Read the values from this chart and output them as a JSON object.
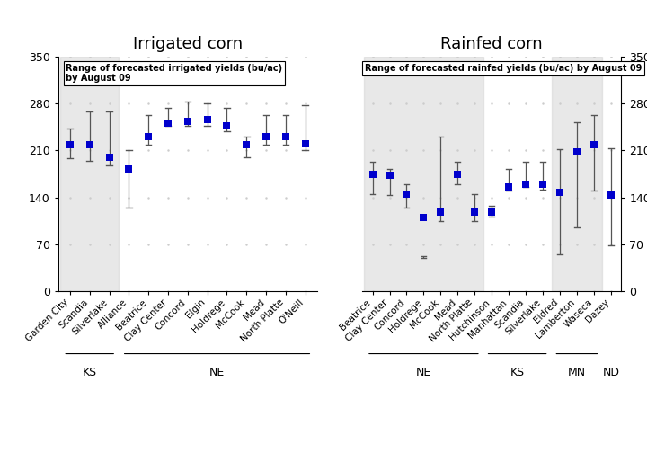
{
  "irrigated": {
    "sites": [
      "Garden City",
      "Scandia",
      "Silverlake",
      "Alliance",
      "Beatrice",
      "Clay Center",
      "Concord",
      "Elgin",
      "Holdrege",
      "McCook",
      "Mead",
      "North Platte",
      "O'Neill"
    ],
    "median": [
      218,
      218,
      200,
      183,
      230,
      250,
      253,
      256,
      246,
      218,
      230,
      230,
      220
    ],
    "lower": [
      198,
      195,
      188,
      125,
      218,
      246,
      246,
      246,
      238,
      200,
      218,
      218,
      210
    ],
    "upper": [
      243,
      268,
      268,
      210,
      263,
      273,
      283,
      280,
      273,
      230,
      263,
      263,
      278
    ],
    "states": [
      "KS",
      "KS",
      "KS",
      "NE",
      "NE",
      "NE",
      "NE",
      "NE",
      "NE",
      "NE",
      "NE",
      "NE",
      "NE"
    ],
    "state_groups": [
      {
        "label": "KS",
        "start": 0,
        "end": 2
      },
      {
        "label": "NE",
        "start": 3,
        "end": 12
      }
    ]
  },
  "rainfed": {
    "sites": [
      "Beatrice",
      "Clay Center",
      "Concord",
      "Holdrege",
      "McCook",
      "Mead",
      "North Platte",
      "Hutchinson",
      "Manhattan",
      "Scandia",
      "Silverlake",
      "Eldred",
      "Lamberton",
      "Waseca",
      "Dazey"
    ],
    "median": [
      175,
      173,
      145,
      110,
      118,
      175,
      118,
      118,
      155,
      160,
      160,
      148,
      208,
      218,
      143
    ],
    "lower": [
      145,
      143,
      125,
      50,
      105,
      160,
      105,
      112,
      150,
      155,
      152,
      55,
      95,
      150,
      68
    ],
    "upper": [
      193,
      183,
      160,
      52,
      230,
      193,
      145,
      128,
      183,
      193,
      193,
      212,
      252,
      263,
      213
    ],
    "states": [
      "NE",
      "NE",
      "NE",
      "NE",
      "NE",
      "NE",
      "NE",
      "KS",
      "KS",
      "KS",
      "KS",
      "MN",
      "MN",
      "MN",
      "ND"
    ],
    "state_groups": [
      {
        "label": "NE",
        "start": 0,
        "end": 6
      },
      {
        "label": "KS",
        "start": 7,
        "end": 10
      },
      {
        "label": "MN",
        "start": 11,
        "end": 13
      },
      {
        "label": "ND",
        "start": 14,
        "end": 14
      }
    ]
  },
  "ylim": [
    0,
    350
  ],
  "yticks": [
    0,
    70,
    140,
    210,
    280,
    350
  ],
  "title_left": "Irrigated corn",
  "title_right": "Rainfed corn",
  "annotation_left": "Range of forecasted irrigated yields (bu/ac)\nby August 09",
  "annotation_right": "Range of forecasted rainfed yields (bu/ac) by August 09",
  "shade_color": "#d3d3d3",
  "shade_alpha": 0.5,
  "marker_color": "#0000cc",
  "line_color": "#555555",
  "shaded_irr_states": [
    "KS"
  ],
  "shaded_rf_states": [
    "NE",
    "MN"
  ]
}
